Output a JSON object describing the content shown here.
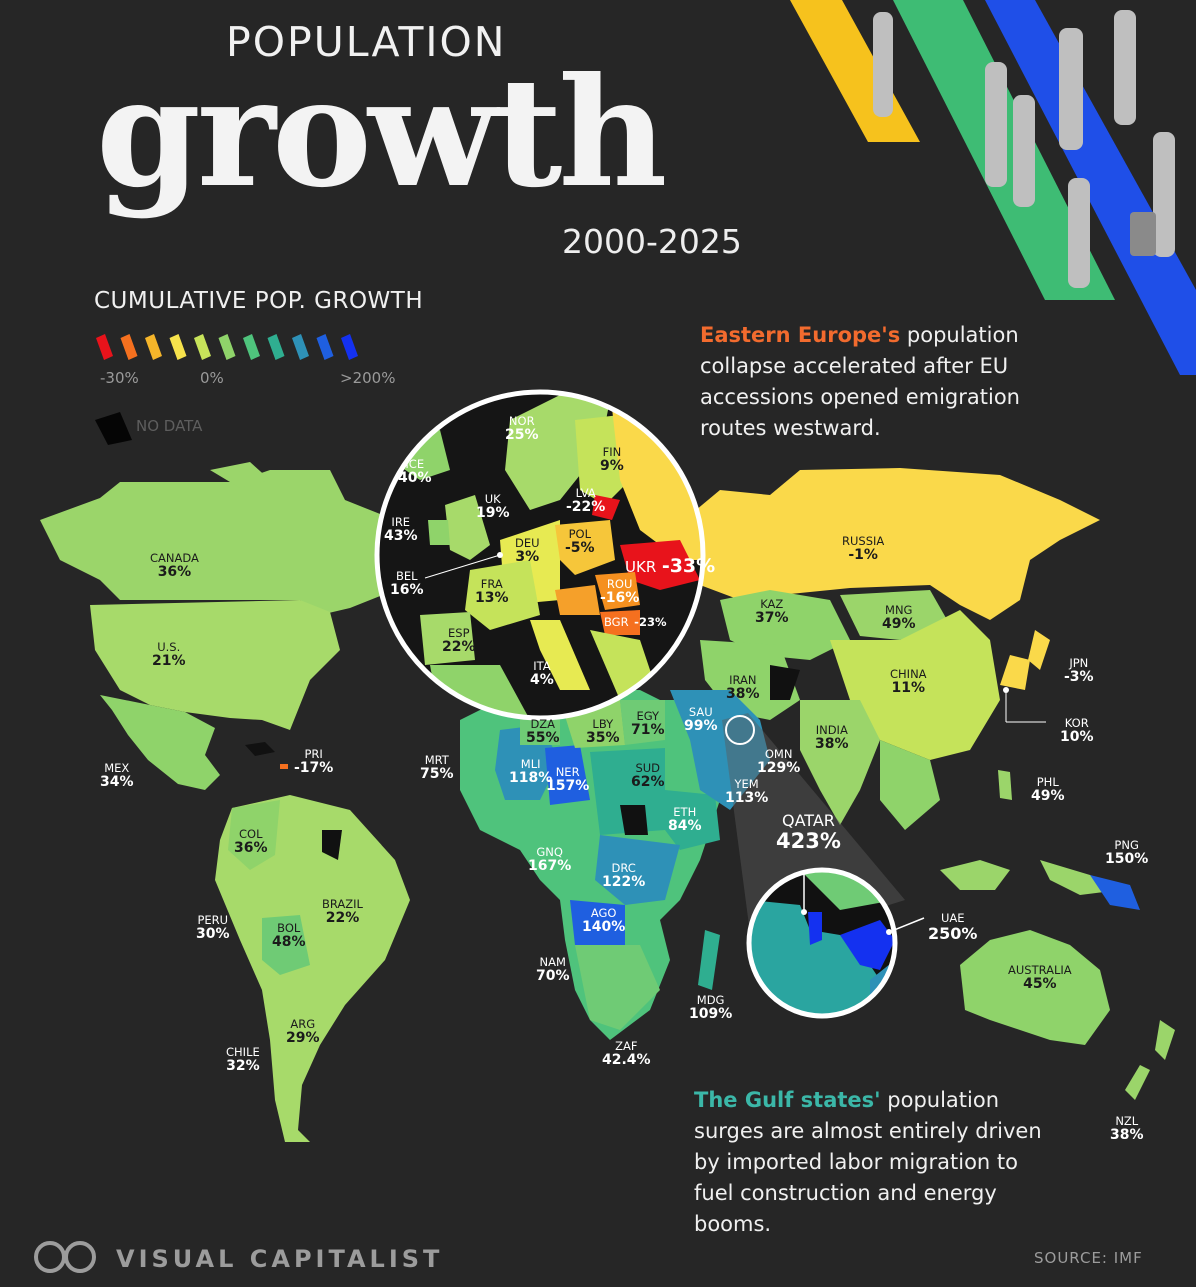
{
  "title": {
    "top": "POPULATION",
    "main": "growth",
    "years": "2000-2025"
  },
  "legend": {
    "heading": "CUMULATIVE POP. GROWTH",
    "low": "-30%",
    "mid": "0%",
    "high": ">200%",
    "no_data": "NO DATA",
    "colors": [
      "#e8131b",
      "#f5701f",
      "#f5b52a",
      "#f6e24c",
      "#c7e35a",
      "#8fd36a",
      "#4fc37c",
      "#2fae90",
      "#2e91b7",
      "#1f5fe0",
      "#1431f0"
    ]
  },
  "notes": {
    "europe_highlight": "Eastern Europe's",
    "europe_text": "population collapse accelerated after EU accessions opened emigration routes westward.",
    "gulf_highlight": "The Gulf states'",
    "gulf_text": "population surges are almost entirely driven by imported labor migration to fuel construction and energy booms."
  },
  "labels": [
    {
      "code": "CANADA",
      "value": "36%"
    },
    {
      "code": "U.S.",
      "value": "21%"
    },
    {
      "code": "MEX",
      "value": "34%"
    },
    {
      "code": "PRI",
      "value": "-17%"
    },
    {
      "code": "COL",
      "value": "36%"
    },
    {
      "code": "PERU",
      "value": "30%"
    },
    {
      "code": "BRAZIL",
      "value": "22%"
    },
    {
      "code": "BOL",
      "value": "48%"
    },
    {
      "code": "ARG",
      "value": "29%"
    },
    {
      "code": "CHILE",
      "value": "32%"
    },
    {
      "code": "NOR",
      "value": "25%"
    },
    {
      "code": "FIN",
      "value": "9%"
    },
    {
      "code": "ICE",
      "value": "40%"
    },
    {
      "code": "LVA",
      "value": "-22%"
    },
    {
      "code": "UK",
      "value": "19%"
    },
    {
      "code": "IRE",
      "value": "43%"
    },
    {
      "code": "DEU",
      "value": "3%"
    },
    {
      "code": "POL",
      "value": "-5%"
    },
    {
      "code": "UKR",
      "value": "-33%"
    },
    {
      "code": "BEL",
      "value": "16%"
    },
    {
      "code": "FRA",
      "value": "13%"
    },
    {
      "code": "ROU",
      "value": "-16%"
    },
    {
      "code": "BGR",
      "value": "-23%"
    },
    {
      "code": "ESP",
      "value": "22%"
    },
    {
      "code": "ITA",
      "value": "4%"
    },
    {
      "code": "RUSSIA",
      "value": "-1%"
    },
    {
      "code": "KAZ",
      "value": "37%"
    },
    {
      "code": "MNG",
      "value": "49%"
    },
    {
      "code": "JPN",
      "value": "-3%"
    },
    {
      "code": "CHINA",
      "value": "11%"
    },
    {
      "code": "IRAN",
      "value": "38%"
    },
    {
      "code": "KOR",
      "value": "10%"
    },
    {
      "code": "INDIA",
      "value": "38%"
    },
    {
      "code": "PHL",
      "value": "49%"
    },
    {
      "code": "PNG",
      "value": "150%"
    },
    {
      "code": "MRT",
      "value": "75%"
    },
    {
      "code": "DZA",
      "value": "55%"
    },
    {
      "code": "LBY",
      "value": "35%"
    },
    {
      "code": "EGY",
      "value": "71%"
    },
    {
      "code": "SAU",
      "value": "99%"
    },
    {
      "code": "MLI",
      "value": "118%"
    },
    {
      "code": "NER",
      "value": "157%"
    },
    {
      "code": "SUD",
      "value": "62%"
    },
    {
      "code": "OMN",
      "value": "129%"
    },
    {
      "code": "YEM",
      "value": "113%"
    },
    {
      "code": "ETH",
      "value": "84%"
    },
    {
      "code": "GNQ",
      "value": "167%"
    },
    {
      "code": "DRC",
      "value": "122%"
    },
    {
      "code": "AGO",
      "value": "140%"
    },
    {
      "code": "NAM",
      "value": "70%"
    },
    {
      "code": "MDG",
      "value": "109%"
    },
    {
      "code": "ZAF",
      "value": "42.4%"
    },
    {
      "code": "AUSTRALIA",
      "value": "45%"
    },
    {
      "code": "NZL",
      "value": "38%"
    },
    {
      "code": "QATAR",
      "value": "423%"
    },
    {
      "code": "UAE",
      "value": "250%"
    }
  ],
  "footer": {
    "brand": "VISUAL CAPITALIST",
    "source": "SOURCE:  IMF"
  }
}
